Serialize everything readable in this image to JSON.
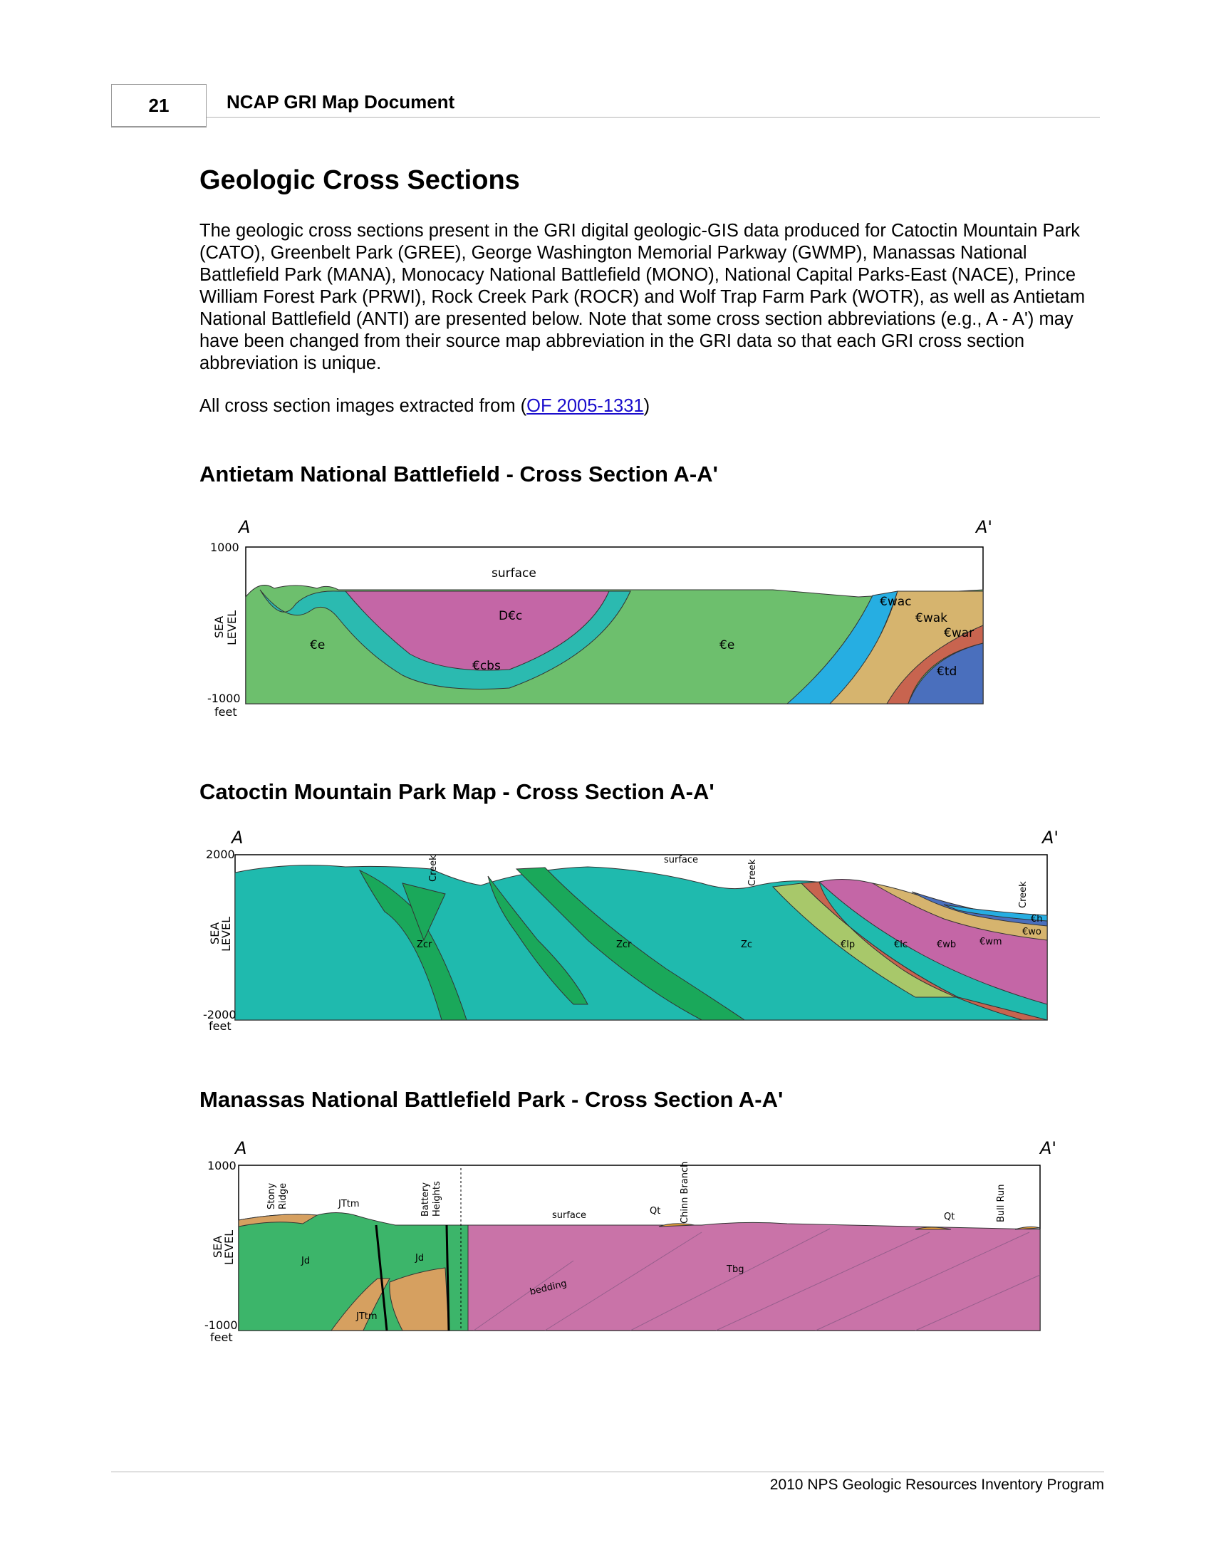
{
  "header": {
    "page_number": "21",
    "title": "NCAP GRI Map Document"
  },
  "heading": "Geologic Cross Sections",
  "intro": "The geologic cross sections present in the GRI digital geologic-GIS data produced for Catoctin Mountain Park (CATO), Greenbelt Park (GREE), George Washington Memorial Parkway (GWMP), Manassas National Battlefield Park (MANA), Monocacy National Battlefield (MONO), National Capital Parks-East (NACE), Prince William Forest Park (PRWI), Rock Creek Park (ROCR) and Wolf Trap Farm Park (WOTR), as well as Antietam National Battlefield (ANTI) are presented below. Note that some cross section abbreviations (e.g., A - A') may have been changed from their source map abbreviation in the GRI data so that each GRI cross section abbreviation is unique.",
  "source": {
    "prefix": "All cross section images extracted from (",
    "link": "OF 2005-1331",
    "suffix": ")"
  },
  "sections": [
    {
      "title": "Antietam National Battlefield - Cross Section A-A'",
      "end_left": "A",
      "end_right": "A'",
      "axis": {
        "top": "1000",
        "sea1": "SEA",
        "sea2": "LEVEL",
        "bottom": "-1000",
        "unit": "feet"
      },
      "labels": {
        "surface": "surface",
        "dc": "D€c",
        "e1": "€e",
        "e2": "€e",
        "cbs": "€cbs",
        "wac": "€wac",
        "wak": "€wak",
        "war": "€war",
        "td": "€td"
      }
    },
    {
      "title": "Catoctin Mountain Park Map - Cross Section A-A'",
      "end_left": "A",
      "end_right": "A'",
      "axis": {
        "top": "2000",
        "sea1": "SEA",
        "sea2": "LEVEL",
        "bottom": "-2000",
        "unit": "feet"
      },
      "labels": {
        "creek1": "Creek",
        "creek2": "Creek",
        "creek3": "Creek",
        "surface": "surface",
        "zcr1": "Zcr",
        "zcr2": "Zcr",
        "zc": "Zc",
        "clp": "€lp",
        "clc": "€lc",
        "cwb": "€wb",
        "cwm": "€wm",
        "cwo": "€wo",
        "ch": "€h"
      }
    },
    {
      "title": "Manassas National Battlefield Park - Cross Section A-A'",
      "end_left": "A",
      "end_right": "A'",
      "axis": {
        "top": "1000",
        "sea1": "SEA",
        "sea2": "LEVEL",
        "bottom": "-1000",
        "unit": "feet"
      },
      "labels": {
        "stony": "Stony",
        "ridge": "Ridge",
        "jtm1": "JTtm",
        "battery": "Battery",
        "heights": "Heights",
        "surface": "surface",
        "qt1": "Qt",
        "chimn": "Chinn Branch",
        "qt2": "Qt",
        "bull": "Bull Run",
        "jd1": "Jd",
        "jd2": "Jd",
        "bedding": "bedding",
        "tbg": "Tbg",
        "jtm2": "JTtm"
      }
    }
  ],
  "footer": "2010 NPS Geologic Resources Inventory Program"
}
